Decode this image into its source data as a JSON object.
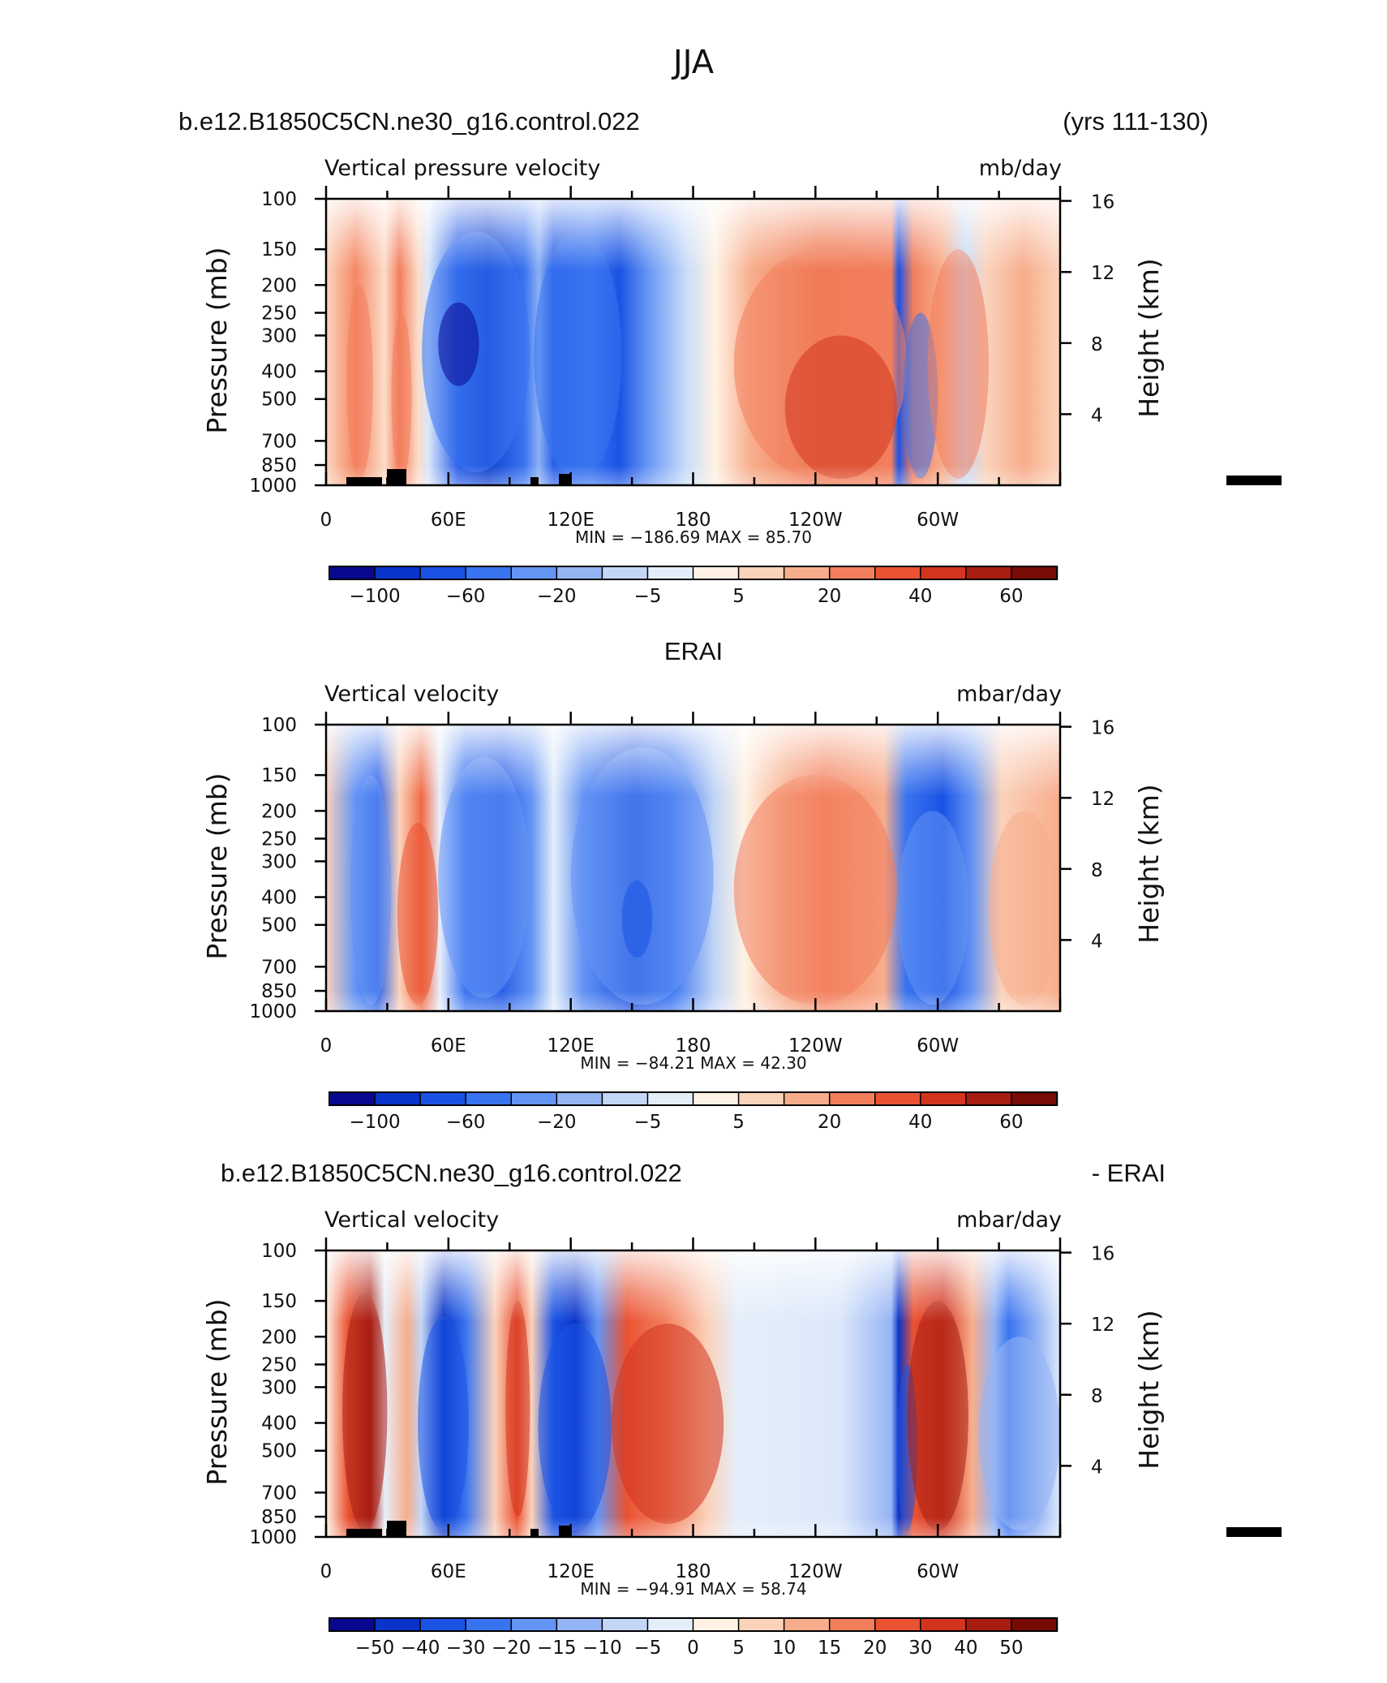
{
  "page": {
    "title": "JJA"
  },
  "panels": [
    {
      "header_left": "b.e12.B1850C5CN.ne30_g16.control.022",
      "header_center": "",
      "header_right": "(yrs 111-130)",
      "var_label": "Vertical pressure velocity",
      "units": "mb/day",
      "ylabel": "Pressure (mb)",
      "ylabel_right": "Height (km)",
      "minmax": "MIN = −186.69   MAX =   85.70",
      "colorbar": "abs"
    },
    {
      "header_left": "",
      "header_center": "ERAI",
      "header_right": "",
      "var_label": "Vertical velocity",
      "units": "mbar/day",
      "ylabel": "Pressure (mb)",
      "ylabel_right": "Height (km)",
      "minmax": "MIN = −84.21   MAX =   42.30",
      "colorbar": "abs"
    },
    {
      "header_left": "b.e12.B1850C5CN.ne30_g16.control.022",
      "header_center": "",
      "header_right": "- ERAI",
      "var_label": "Vertical velocity",
      "units": "mbar/day",
      "ylabel": "Pressure (mb)",
      "ylabel_right": "Height (km)",
      "minmax": "MIN = −94.91   MAX =   58.74",
      "colorbar": "diff"
    }
  ],
  "colorbars": {
    "abs": {
      "colors": [
        "#08088f",
        "#0a34c9",
        "#1a53e4",
        "#3974f0",
        "#6494f4",
        "#95b4f4",
        "#c3d6f6",
        "#e4eefa",
        "#fff2e4",
        "#fbd2ba",
        "#f7ad8c",
        "#f27e5c",
        "#ea5232",
        "#d2341e",
        "#a81d12",
        "#780b06"
      ],
      "labels": [
        {
          "text": "−100",
          "after": 1
        },
        {
          "text": "−60",
          "after": 3
        },
        {
          "text": "−20",
          "after": 5
        },
        {
          "text": "−5",
          "after": 7
        },
        {
          "text": "5",
          "after": 9
        },
        {
          "text": "20",
          "after": 11
        },
        {
          "text": "40",
          "after": 13
        },
        {
          "text": "60",
          "after": 15
        }
      ]
    },
    "diff": {
      "colors": [
        "#08088f",
        "#0a34c9",
        "#1a53e4",
        "#3974f0",
        "#6494f4",
        "#95b4f4",
        "#c3d6f6",
        "#e4eefa",
        "#fff2e4",
        "#fbd2ba",
        "#f7ad8c",
        "#f27e5c",
        "#ea5232",
        "#d2341e",
        "#a81d12",
        "#780b06"
      ],
      "labels": [
        {
          "text": "−50",
          "after": 1
        },
        {
          "text": "−40",
          "after": 2
        },
        {
          "text": "−30",
          "after": 3
        },
        {
          "text": "−20",
          "after": 4
        },
        {
          "text": "−15",
          "after": 5
        },
        {
          "text": "−10",
          "after": 6
        },
        {
          "text": "−5",
          "after": 7
        },
        {
          "text": "0",
          "after": 8
        },
        {
          "text": "5",
          "after": 9
        },
        {
          "text": "10",
          "after": 10
        },
        {
          "text": "15",
          "after": 11
        },
        {
          "text": "20",
          "after": 12
        },
        {
          "text": "30",
          "after": 13
        },
        {
          "text": "40",
          "after": 14
        },
        {
          "text": "50",
          "after": 15
        }
      ]
    }
  },
  "chart_data": [
    {
      "type": "heatmap",
      "title": "b.e12.B1850C5CN.ne30_g16.control.022 (yrs 111-130)",
      "xlabel": "",
      "ylabel": "Pressure (mb)",
      "ylabel_right": "Height (km)",
      "x_ticks": [
        "0",
        "60E",
        "120E",
        "180",
        "120W",
        "60W"
      ],
      "y_ticks": [
        "100",
        "150",
        "200",
        "250",
        "300",
        "400",
        "500",
        "700",
        "850",
        "1000"
      ],
      "y_ticks_right": [
        "16",
        "12",
        "8",
        "4"
      ],
      "xlim_deg": [
        0,
        360
      ],
      "ylim_mb": [
        1000,
        100
      ],
      "log_pressure_axis": true,
      "min": -186.69,
      "max": 85.7,
      "levels": [
        -120,
        -100,
        -80,
        -60,
        -40,
        -20,
        -10,
        -5,
        0,
        5,
        10,
        20,
        30,
        40,
        50,
        60,
        70
      ],
      "features": [
        {
          "lon_range": [
            10,
            23
          ],
          "p_range": [
            200,
            950
          ],
          "value": 25
        },
        {
          "lon_range": [
            32,
            42
          ],
          "p_range": [
            250,
            950
          ],
          "value": 25
        },
        {
          "lon_range": [
            47,
            100
          ],
          "p_range": [
            130,
            900
          ],
          "value": -45
        },
        {
          "lon_range": [
            102,
            145
          ],
          "p_range": [
            130,
            950
          ],
          "value": -45
        },
        {
          "lon_range": [
            55,
            75
          ],
          "p_range": [
            230,
            450
          ],
          "value": -110
        },
        {
          "lon_range": [
            200,
            285
          ],
          "p_range": [
            150,
            950
          ],
          "value": 25
        },
        {
          "lon_range": [
            225,
            280
          ],
          "p_range": [
            300,
            950
          ],
          "value": 40
        },
        {
          "lon_range": [
            283,
            300
          ],
          "p_range": [
            250,
            950
          ],
          "value": -50
        },
        {
          "lon_range": [
            295,
            325
          ],
          "p_range": [
            150,
            950
          ],
          "value": 20
        }
      ]
    },
    {
      "type": "heatmap",
      "title": "ERAI",
      "xlabel": "",
      "ylabel": "Pressure (mb)",
      "ylabel_right": "Height (km)",
      "x_ticks": [
        "0",
        "60E",
        "120E",
        "180",
        "120W",
        "60W"
      ],
      "y_ticks": [
        "100",
        "150",
        "200",
        "250",
        "300",
        "400",
        "500",
        "700",
        "850",
        "1000"
      ],
      "y_ticks_right": [
        "16",
        "12",
        "8",
        "4"
      ],
      "xlim_deg": [
        0,
        360
      ],
      "ylim_mb": [
        1000,
        100
      ],
      "log_pressure_axis": true,
      "min": -84.21,
      "max": 42.3,
      "levels": [
        -120,
        -100,
        -80,
        -60,
        -40,
        -20,
        -10,
        -5,
        0,
        5,
        10,
        20,
        30,
        40,
        50,
        60,
        70
      ],
      "features": [
        {
          "lon_range": [
            12,
            32
          ],
          "p_range": [
            150,
            950
          ],
          "value": -35
        },
        {
          "lon_range": [
            35,
            55
          ],
          "p_range": [
            220,
            950
          ],
          "value": 35
        },
        {
          "lon_range": [
            55,
            100
          ],
          "p_range": [
            130,
            900
          ],
          "value": -30
        },
        {
          "lon_range": [
            120,
            190
          ],
          "p_range": [
            120,
            950
          ],
          "value": -35
        },
        {
          "lon_range": [
            145,
            160
          ],
          "p_range": [
            350,
            650
          ],
          "value": -70
        },
        {
          "lon_range": [
            200,
            280
          ],
          "p_range": [
            150,
            950
          ],
          "value": 22
        },
        {
          "lon_range": [
            280,
            315
          ],
          "p_range": [
            200,
            950
          ],
          "value": -30
        },
        {
          "lon_range": [
            325,
            360
          ],
          "p_range": [
            200,
            950
          ],
          "value": 18
        }
      ]
    },
    {
      "type": "heatmap",
      "title": "b.e12.B1850C5CN.ne30_g16.control.022 - ERAI",
      "xlabel": "",
      "ylabel": "Pressure (mb)",
      "ylabel_right": "Height (km)",
      "x_ticks": [
        "0",
        "60E",
        "120E",
        "180",
        "120W",
        "60W"
      ],
      "y_ticks": [
        "100",
        "150",
        "200",
        "250",
        "300",
        "400",
        "500",
        "700",
        "850",
        "1000"
      ],
      "y_ticks_right": [
        "16",
        "12",
        "8",
        "4"
      ],
      "xlim_deg": [
        0,
        360
      ],
      "ylim_mb": [
        1000,
        100
      ],
      "log_pressure_axis": true,
      "min": -94.91,
      "max": 58.74,
      "levels": [
        -60,
        -50,
        -40,
        -30,
        -20,
        -15,
        -10,
        -5,
        0,
        5,
        10,
        15,
        20,
        30,
        40,
        50,
        60
      ],
      "features": [
        {
          "lon_range": [
            8,
            30
          ],
          "p_range": [
            140,
            950
          ],
          "value": 40
        },
        {
          "lon_range": [
            45,
            70
          ],
          "p_range": [
            170,
            950
          ],
          "value": -40
        },
        {
          "lon_range": [
            88,
            100
          ],
          "p_range": [
            150,
            850
          ],
          "value": 30
        },
        {
          "lon_range": [
            104,
            140
          ],
          "p_range": [
            180,
            950
          ],
          "value": -40
        },
        {
          "lon_range": [
            140,
            195
          ],
          "p_range": [
            180,
            900
          ],
          "value": 30
        },
        {
          "lon_range": [
            280,
            290
          ],
          "p_range": [
            250,
            950
          ],
          "value": -40
        },
        {
          "lon_range": [
            285,
            315
          ],
          "p_range": [
            150,
            950
          ],
          "value": 40
        },
        {
          "lon_range": [
            320,
            360
          ],
          "p_range": [
            200,
            950
          ],
          "value": -15
        }
      ]
    }
  ]
}
